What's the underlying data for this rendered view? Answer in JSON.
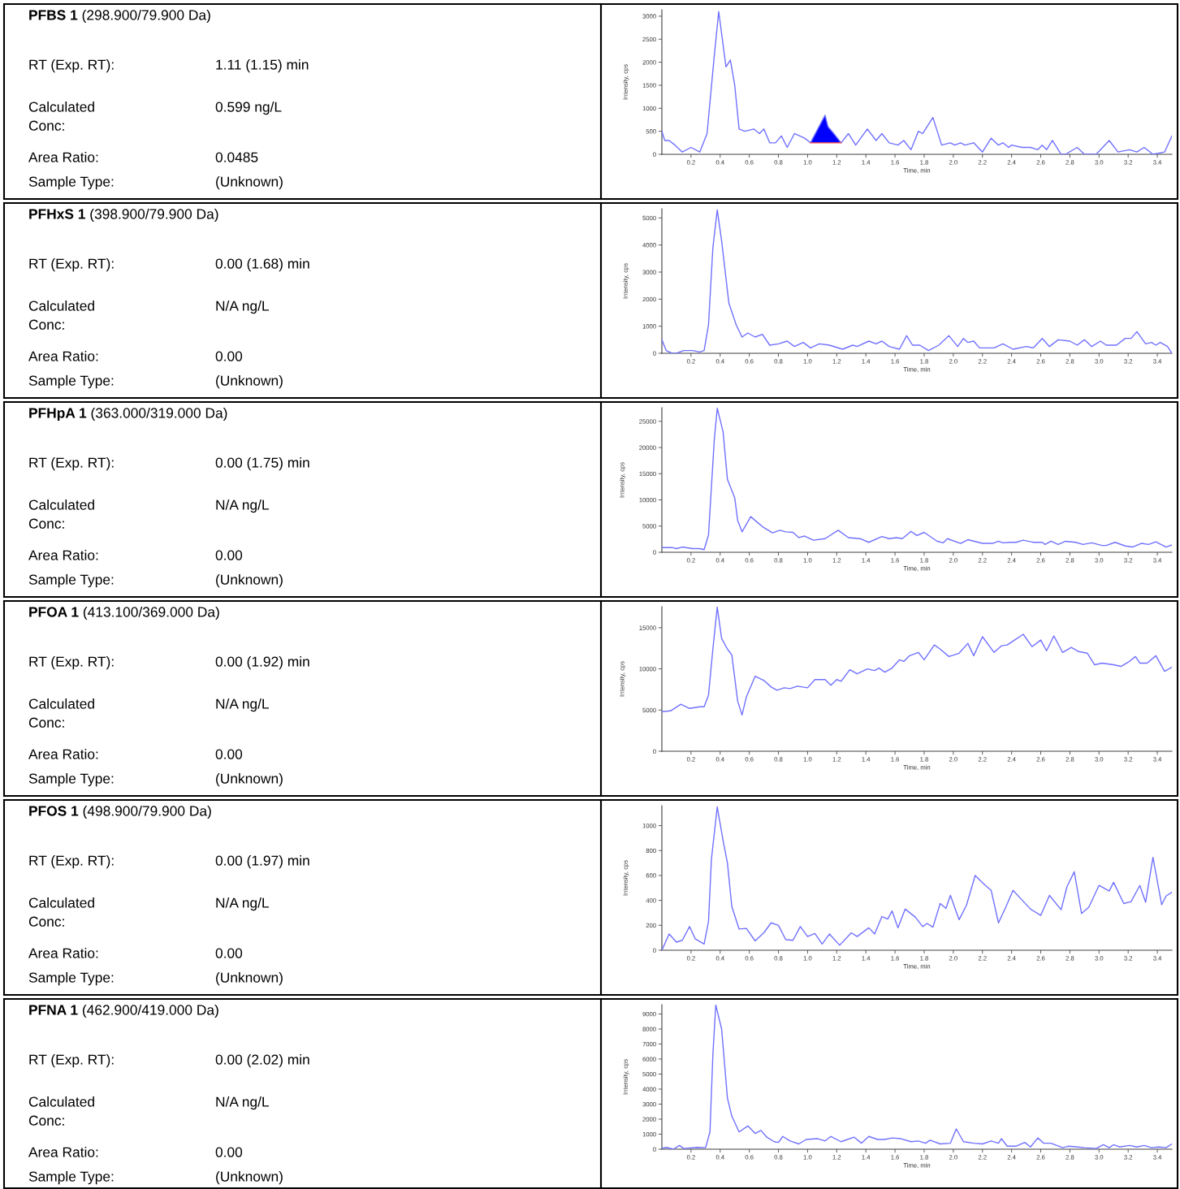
{
  "chart_data": [
    {
      "type": "other",
      "title": "PFBS 1",
      "subtitle": "(298.900/79.900 Da)",
      "annotations": [
        "RT (Exp. RT):",
        "1.11 (1.15) min",
        "Calculated\nConc:",
        "0.599 ng/L",
        "Area Ratio:",
        "0.0485",
        "Sample Type:",
        "(Unknown)"
      ]
    },
    {
      "type": "line",
      "xlabel": "Time, min",
      "ylabel": "Intensity, cps",
      "xlim": [
        0,
        3.5
      ],
      "ylim": [
        0,
        3140
      ],
      "xticks": [
        0.2,
        0.4,
        0.6,
        0.8,
        {
          "value": 1,
          "label": "1.0"
        },
        1.2,
        1.4,
        1.6,
        1.8,
        {
          "value": 2,
          "label": "2.0"
        },
        2.2,
        2.4,
        2.6,
        2.8,
        {
          "value": 3,
          "label": "3.0"
        },
        3.2,
        3.4
      ],
      "yticks": [
        0,
        500,
        1000,
        1500,
        2000,
        2500,
        3000
      ],
      "series": [
        {
          "color": "#7070ff",
          "x": [
            0,
            0.02,
            0.05,
            0.09,
            0.14,
            0.2,
            0.26,
            0.31,
            0.36,
            0.39,
            0.44,
            0.47,
            0.5,
            0.53,
            0.57,
            0.63,
            0.67,
            0.7,
            0.74,
            0.78,
            0.82,
            0.86,
            0.91,
            0.98,
            1.02,
            1.07,
            1.12,
            1.14,
            1.18,
            1.23,
            1.28,
            1.33,
            1.41,
            1.47,
            1.51,
            1.56,
            1.62,
            1.66,
            1.71,
            1.76,
            1.79,
            1.86,
            1.92,
            1.98,
            2.01,
            2.05,
            2.08,
            2.14,
            2.2,
            2.26,
            2.31,
            2.34,
            2.38,
            2.4,
            2.47,
            2.53,
            2.58,
            2.61,
            2.64,
            2.68,
            2.74,
            2.77,
            2.85,
            2.9,
            2.98,
            3.07,
            3.13,
            3.21,
            3.26,
            3.31,
            3.37,
            3.45,
            3.5
          ],
          "values": [
            500,
            300,
            300,
            200,
            50,
            150,
            50,
            450,
            2150,
            3100,
            1900,
            2050,
            1500,
            550,
            500,
            550,
            450,
            550,
            250,
            250,
            400,
            150,
            450,
            350,
            250,
            550,
            850,
            600,
            450,
            250,
            450,
            200,
            550,
            300,
            450,
            250,
            200,
            300,
            100,
            500,
            450,
            800,
            200,
            250,
            200,
            250,
            200,
            250,
            50,
            350,
            200,
            250,
            150,
            200,
            150,
            150,
            100,
            200,
            100,
            300,
            0,
            0,
            150,
            0,
            0,
            300,
            50,
            100,
            50,
            150,
            0,
            50,
            400
          ]
        },
        {
          "type": "line",
          "color": "#ff4040",
          "x": [
            1.02,
            1.23
          ],
          "values": [
            250,
            250
          ]
        },
        {
          "type": "area",
          "color": "#0000ff",
          "x": [
            1.02,
            1.07,
            1.12,
            1.14,
            1.18,
            1.23
          ],
          "values": [
            250,
            550,
            850,
            600,
            450,
            250
          ]
        }
      ]
    },
    {
      "type": "other",
      "title": "PFHxS 1",
      "subtitle": "(398.900/79.900 Da)",
      "annotations": [
        "RT (Exp. RT):",
        "0.00 (1.68) min",
        "Calculated\nConc:",
        "N/A ng/L",
        "Area Ratio:",
        "0.00",
        "Sample Type:",
        "(Unknown)"
      ]
    },
    {
      "type": "line",
      "xlabel": "Time, min",
      "ylabel": "Intensity, cps",
      "xlim": [
        0,
        3.5
      ],
      "ylim": [
        0,
        5340
      ],
      "xticks": [
        0.2,
        0.4,
        0.6,
        0.8,
        {
          "value": 1,
          "label": "1.0"
        },
        1.2,
        1.4,
        1.6,
        1.8,
        {
          "value": 2,
          "label": "2.0"
        },
        2.2,
        2.4,
        2.6,
        2.8,
        {
          "value": 3,
          "label": "3.0"
        },
        3.2,
        3.4
      ],
      "yticks": [
        0,
        1000,
        2000,
        3000,
        4000,
        5000
      ],
      "series": [
        {
          "color": "#7070ff",
          "x": [
            0,
            0.03,
            0.07,
            0.1,
            0.15,
            0.21,
            0.26,
            0.29,
            0.32,
            0.35,
            0.38,
            0.41,
            0.46,
            0.51,
            0.55,
            0.59,
            0.64,
            0.69,
            0.74,
            0.8,
            0.86,
            0.91,
            0.97,
            1.02,
            1.08,
            1.15,
            1.24,
            1.31,
            1.34,
            1.42,
            1.47,
            1.51,
            1.56,
            1.63,
            1.68,
            1.72,
            1.77,
            1.83,
            1.9,
            1.97,
            2.03,
            2.07,
            2.1,
            2.14,
            2.18,
            2.28,
            2.34,
            2.41,
            2.5,
            2.55,
            2.61,
            2.66,
            2.72,
            2.8,
            2.85,
            2.9,
            2.95,
            3.01,
            3.05,
            3.12,
            3.18,
            3.22,
            3.26,
            3.32,
            3.36,
            3.39,
            3.42,
            3.47,
            3.5
          ],
          "values": [
            500,
            100,
            0,
            0,
            100,
            100,
            50,
            100,
            1050,
            3900,
            5300,
            4150,
            1850,
            1050,
            600,
            750,
            600,
            700,
            300,
            350,
            450,
            250,
            400,
            200,
            350,
            300,
            150,
            300,
            250,
            450,
            350,
            450,
            250,
            150,
            650,
            300,
            300,
            100,
            300,
            650,
            250,
            550,
            400,
            450,
            200,
            200,
            350,
            150,
            250,
            200,
            550,
            250,
            500,
            450,
            300,
            500,
            250,
            450,
            300,
            300,
            550,
            550,
            800,
            350,
            400,
            300,
            400,
            250,
            0
          ]
        }
      ]
    },
    {
      "type": "other",
      "title": "PFHpA 1",
      "subtitle": "(363.000/319.000 Da)",
      "annotations": [
        "RT (Exp. RT):",
        "0.00 (1.75) min",
        "Calculated\nConc:",
        "N/A ng/L",
        "Area Ratio:",
        "0.00",
        "Sample Type:",
        "(Unknown)"
      ]
    },
    {
      "type": "line",
      "xlabel": "Time, min",
      "ylabel": "Intensity, cps",
      "xlim": [
        0,
        3.5
      ],
      "ylim": [
        0,
        27600
      ],
      "xticks": [
        0.2,
        0.4,
        0.6,
        0.8,
        {
          "value": 1,
          "label": "1.0"
        },
        1.2,
        1.4,
        1.6,
        1.8,
        {
          "value": 2,
          "label": "2.0"
        },
        2.2,
        2.4,
        2.6,
        2.8,
        {
          "value": 3,
          "label": "3.0"
        },
        3.2,
        3.4
      ],
      "yticks": [
        0,
        5000,
        10000,
        15000,
        20000,
        25000
      ],
      "series": [
        {
          "color": "#7070ff",
          "x": [
            0,
            0.07,
            0.1,
            0.14,
            0.21,
            0.26,
            0.29,
            0.32,
            0.36,
            0.38,
            0.42,
            0.45,
            0.5,
            0.52,
            0.55,
            0.61,
            0.66,
            0.7,
            0.76,
            0.81,
            0.85,
            0.9,
            0.94,
            0.98,
            1.04,
            1.12,
            1.21,
            1.28,
            1.36,
            1.42,
            1.51,
            1.56,
            1.61,
            1.65,
            1.71,
            1.75,
            1.8,
            1.89,
            1.93,
            1.96,
            2.05,
            2.1,
            2.2,
            2.27,
            2.31,
            2.34,
            2.39,
            2.43,
            2.48,
            2.55,
            2.61,
            2.63,
            2.67,
            2.72,
            2.77,
            2.84,
            2.89,
            2.95,
            3.02,
            3.05,
            3.11,
            3.18,
            3.23,
            3.29,
            3.34,
            3.39,
            3.46,
            3.5
          ],
          "values": [
            900,
            900,
            700,
            1000,
            700,
            700,
            500,
            3300,
            21600,
            27500,
            23000,
            13900,
            10400,
            6100,
            3900,
            6800,
            5600,
            4700,
            3700,
            4200,
            3900,
            3800,
            2800,
            3100,
            2300,
            2600,
            4200,
            2800,
            2600,
            1900,
            3000,
            2600,
            2800,
            2600,
            4000,
            3200,
            3800,
            2100,
            1800,
            2600,
            1700,
            2400,
            1700,
            1700,
            2100,
            1800,
            1900,
            1900,
            2300,
            1900,
            1900,
            1500,
            2100,
            1500,
            2100,
            1900,
            1500,
            1800,
            1300,
            1300,
            1900,
            1200,
            1000,
            1700,
            1500,
            2000,
            1000,
            1400
          ]
        }
      ]
    },
    {
      "type": "other",
      "title": "PFOA 1",
      "subtitle": "(413.100/369.000 Da)",
      "annotations": [
        "RT (Exp. RT):",
        "0.00 (1.92) min",
        "Calculated\nConc:",
        "N/A ng/L",
        "Area Ratio:",
        "0.00",
        "Sample Type:",
        "(Unknown)"
      ]
    },
    {
      "type": "line",
      "xlabel": "Time, min",
      "ylabel": "Intensity, cps",
      "xlim": [
        0,
        3.5
      ],
      "ylim": [
        0,
        17550
      ],
      "xticks": [
        0.2,
        0.4,
        0.6,
        0.8,
        {
          "value": 1,
          "label": "1.0"
        },
        1.2,
        1.4,
        1.6,
        1.8,
        {
          "value": 2,
          "label": "2.0"
        },
        2.2,
        2.4,
        2.6,
        2.8,
        {
          "value": 3,
          "label": "3.0"
        },
        3.2,
        3.4
      ],
      "yticks": [
        0,
        5000,
        10000,
        15000
      ],
      "series": [
        {
          "color": "#7070ff",
          "x": [
            0,
            0.06,
            0.13,
            0.19,
            0.26,
            0.29,
            0.32,
            0.35,
            0.38,
            0.41,
            0.45,
            0.48,
            0.52,
            0.55,
            0.58,
            0.64,
            0.7,
            0.75,
            0.79,
            0.84,
            0.88,
            0.93,
            1.0,
            1.05,
            1.12,
            1.16,
            1.2,
            1.23,
            1.29,
            1.34,
            1.41,
            1.46,
            1.49,
            1.53,
            1.58,
            1.63,
            1.66,
            1.7,
            1.76,
            1.8,
            1.87,
            1.91,
            1.97,
            2.04,
            2.1,
            2.14,
            2.2,
            2.28,
            2.33,
            2.37,
            2.42,
            2.48,
            2.54,
            2.6,
            2.64,
            2.69,
            2.75,
            2.81,
            2.86,
            2.92,
            2.97,
            3.02,
            3.1,
            3.15,
            3.2,
            3.25,
            3.28,
            3.33,
            3.39,
            3.45,
            3.5
          ],
          "values": [
            4800,
            4900,
            5700,
            5200,
            5400,
            5400,
            6800,
            12400,
            17500,
            13700,
            12400,
            11700,
            6100,
            4400,
            6600,
            9100,
            8600,
            7800,
            7400,
            7700,
            7600,
            7900,
            7700,
            8700,
            8700,
            8000,
            8700,
            8500,
            9900,
            9400,
            10000,
            9800,
            10100,
            9600,
            10100,
            11100,
            10900,
            11600,
            12000,
            11100,
            12900,
            12400,
            11500,
            11900,
            13100,
            11600,
            13900,
            12000,
            12800,
            12900,
            13500,
            14200,
            12700,
            13500,
            12200,
            14000,
            12000,
            12600,
            12100,
            11900,
            10500,
            10700,
            10500,
            10300,
            10800,
            11500,
            10700,
            10700,
            11600,
            9700,
            10200
          ]
        }
      ]
    },
    {
      "type": "other",
      "title": "PFOS 1",
      "subtitle": "(498.900/79.900 Da)",
      "annotations": [
        "RT (Exp. RT):",
        "0.00 (1.97) min",
        "Calculated\nConc:",
        "N/A ng/L",
        "Area Ratio:",
        "0.00",
        "Sample Type:",
        "(Unknown)"
      ]
    },
    {
      "type": "line",
      "xlabel": "Time, min",
      "ylabel": "Intensity, cps",
      "xlim": [
        0,
        3.5
      ],
      "ylim": [
        0,
        1160
      ],
      "xticks": [
        0.2,
        0.4,
        0.6,
        0.8,
        {
          "value": 1,
          "label": "1.0"
        },
        1.2,
        1.4,
        1.6,
        1.8,
        {
          "value": 2,
          "label": "2.0"
        },
        2.2,
        2.4,
        2.6,
        2.8,
        {
          "value": 3,
          "label": "3.0"
        },
        3.2,
        3.4
      ],
      "yticks": [
        0,
        200,
        400,
        600,
        800,
        1000
      ],
      "series": [
        {
          "color": "#7070ff",
          "x": [
            0,
            0.05,
            0.1,
            0.14,
            0.19,
            0.23,
            0.29,
            0.32,
            0.34,
            0.38,
            0.42,
            0.45,
            0.48,
            0.53,
            0.58,
            0.64,
            0.7,
            0.75,
            0.8,
            0.85,
            0.9,
            0.95,
            1.0,
            1.05,
            1.1,
            1.15,
            1.22,
            1.3,
            1.34,
            1.42,
            1.46,
            1.51,
            1.55,
            1.58,
            1.62,
            1.67,
            1.74,
            1.79,
            1.82,
            1.86,
            1.91,
            1.95,
            1.98,
            2.04,
            2.09,
            2.15,
            2.22,
            2.26,
            2.31,
            2.36,
            2.41,
            2.47,
            2.53,
            2.6,
            2.66,
            2.74,
            2.78,
            2.83,
            2.88,
            2.93,
            3.0,
            3.07,
            3.1,
            3.17,
            3.22,
            3.28,
            3.32,
            3.37,
            3.43,
            3.46,
            3.5
          ],
          "values": [
            0,
            130,
            65,
            80,
            190,
            90,
            50,
            230,
            730,
            1150,
            880,
            700,
            350,
            170,
            175,
            75,
            140,
            220,
            200,
            85,
            80,
            190,
            110,
            135,
            50,
            130,
            40,
            140,
            110,
            180,
            130,
            270,
            250,
            315,
            180,
            330,
            265,
            190,
            215,
            185,
            375,
            335,
            440,
            245,
            360,
            600,
            520,
            480,
            220,
            345,
            480,
            405,
            330,
            280,
            440,
            325,
            510,
            630,
            295,
            345,
            520,
            475,
            545,
            375,
            390,
            520,
            385,
            745,
            365,
            435,
            465
          ]
        }
      ]
    },
    {
      "type": "other",
      "title": "PFNA 1",
      "subtitle": "(462.900/419.000 Da)",
      "annotations": [
        "RT (Exp. RT):",
        "0.00 (2.02) min",
        "Calculated\nConc:",
        "N/A ng/L",
        "Area Ratio:",
        "0.00",
        "Sample Type:",
        "(Unknown)"
      ]
    },
    {
      "type": "line",
      "xlabel": "Time, min",
      "ylabel": "Intensity, cps",
      "xlim": [
        0,
        3.5
      ],
      "ylim": [
        0,
        9620
      ],
      "xticks": [
        0.2,
        0.4,
        0.6,
        0.8,
        {
          "value": 1,
          "label": "1.0"
        },
        1.2,
        1.4,
        1.6,
        1.8,
        {
          "value": 2,
          "label": "2.0"
        },
        2.2,
        2.4,
        2.6,
        2.8,
        {
          "value": 3,
          "label": "3.0"
        },
        3.2,
        3.4
      ],
      "yticks": [
        0,
        1000,
        2000,
        3000,
        4000,
        5000,
        6000,
        7000,
        8000,
        9000
      ],
      "series": [
        {
          "color": "#7070ff",
          "x": [
            0,
            0.03,
            0.08,
            0.12,
            0.15,
            0.24,
            0.3,
            0.33,
            0.35,
            0.37,
            0.41,
            0.45,
            0.48,
            0.53,
            0.59,
            0.64,
            0.68,
            0.72,
            0.77,
            0.8,
            0.83,
            0.88,
            0.94,
            0.99,
            1.07,
            1.12,
            1.16,
            1.23,
            1.32,
            1.37,
            1.42,
            1.48,
            1.53,
            1.58,
            1.64,
            1.71,
            1.76,
            1.81,
            1.84,
            1.91,
            1.98,
            2.02,
            2.07,
            2.14,
            2.2,
            2.26,
            2.31,
            2.33,
            2.37,
            2.43,
            2.49,
            2.53,
            2.58,
            2.62,
            2.67,
            2.75,
            2.79,
            2.85,
            2.9,
            2.98,
            3.03,
            3.07,
            3.1,
            3.14,
            3.21,
            3.26,
            3.31,
            3.36,
            3.41,
            3.46,
            3.5
          ],
          "values": [
            50,
            120,
            0,
            250,
            50,
            120,
            100,
            1150,
            6300,
            9600,
            8000,
            3400,
            2200,
            1150,
            1550,
            1050,
            1250,
            800,
            500,
            450,
            850,
            550,
            350,
            650,
            700,
            550,
            850,
            500,
            800,
            400,
            850,
            650,
            650,
            750,
            700,
            500,
            550,
            400,
            600,
            350,
            400,
            1350,
            500,
            400,
            350,
            550,
            400,
            700,
            200,
            200,
            450,
            150,
            750,
            400,
            400,
            100,
            200,
            150,
            100,
            50,
            300,
            100,
            300,
            150,
            250,
            150,
            250,
            100,
            150,
            100,
            350
          ]
        }
      ]
    }
  ]
}
